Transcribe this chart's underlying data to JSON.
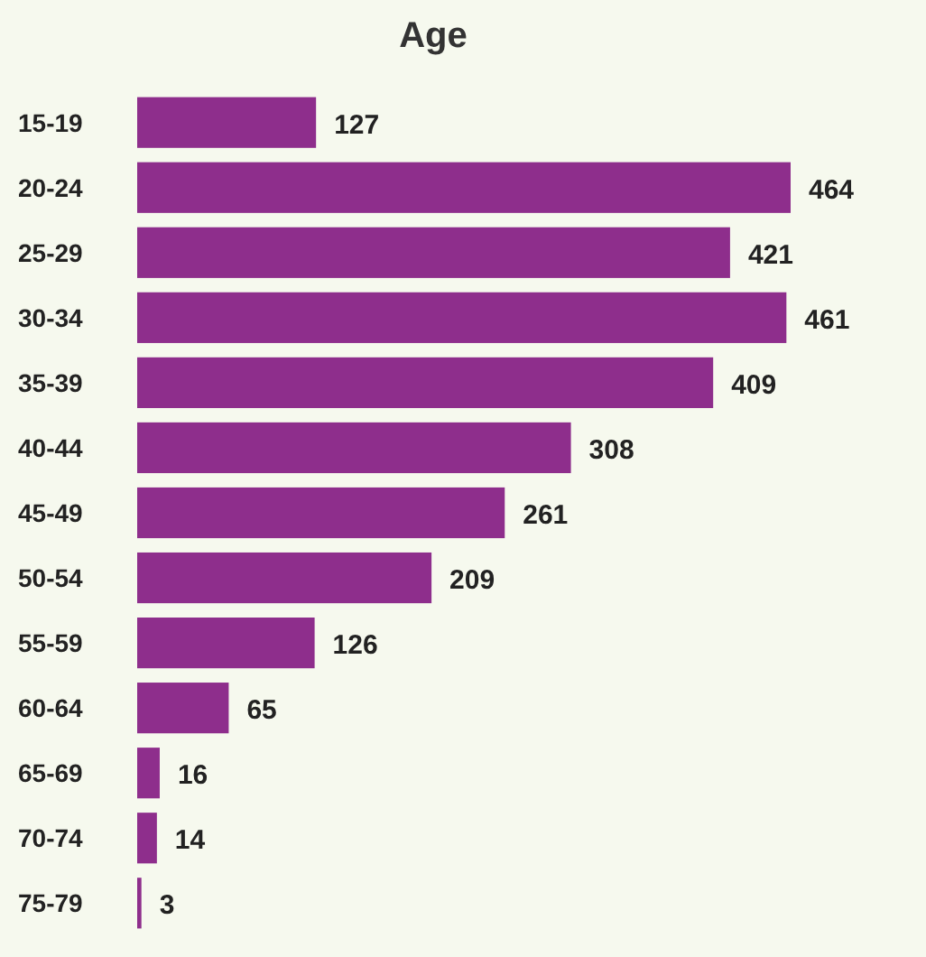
{
  "chart_data": {
    "type": "bar",
    "orientation": "horizontal",
    "title": "Age",
    "categories": [
      "15-19",
      "20-24",
      "25-29",
      "30-34",
      "35-39",
      "40-44",
      "45-49",
      "50-54",
      "55-59",
      "60-64",
      "65-69",
      "70-74",
      "75-79"
    ],
    "values": [
      127,
      464,
      421,
      461,
      409,
      308,
      261,
      209,
      126,
      65,
      16,
      14,
      3
    ],
    "color": "#8e2e8c",
    "data_labels": true,
    "tick_labels": "y"
  }
}
